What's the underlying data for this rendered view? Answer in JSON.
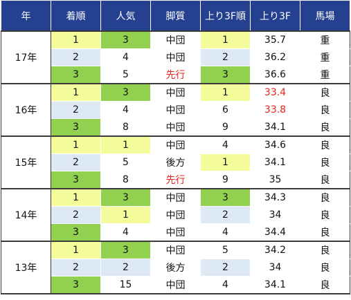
{
  "header": {
    "year": "年",
    "finish": "着順",
    "popularity": "人気",
    "style": "脚質",
    "last3f_rank": "上り3F順",
    "last3f": "上り3F",
    "track": "馬場"
  },
  "colors": {
    "header_bg": "#25408f",
    "rank1": "#f4fc9c",
    "rank2": "#dde9f5",
    "rank3": "#92d150",
    "highlight_text": "#e8231c"
  },
  "years": [
    {
      "year": "17年",
      "rows": [
        {
          "finish": "1",
          "pop": "3",
          "pop_rank": 3,
          "style": "中団",
          "style_red": false,
          "rank3f": "1",
          "rank3f_rank": 1,
          "time": "35.7",
          "time_red": false,
          "track": "重"
        },
        {
          "finish": "2",
          "pop": "4",
          "pop_rank": 0,
          "style": "中団",
          "style_red": false,
          "rank3f": "2",
          "rank3f_rank": 2,
          "time": "36.2",
          "time_red": false,
          "track": "重"
        },
        {
          "finish": "3",
          "pop": "5",
          "pop_rank": 0,
          "style": "先行",
          "style_red": true,
          "rank3f": "3",
          "rank3f_rank": 3,
          "time": "36.6",
          "time_red": false,
          "track": "重"
        }
      ]
    },
    {
      "year": "16年",
      "rows": [
        {
          "finish": "1",
          "pop": "3",
          "pop_rank": 3,
          "style": "中団",
          "style_red": false,
          "rank3f": "1",
          "rank3f_rank": 1,
          "time": "33.4",
          "time_red": true,
          "track": "良"
        },
        {
          "finish": "2",
          "pop": "4",
          "pop_rank": 0,
          "style": "中団",
          "style_red": false,
          "rank3f": "6",
          "rank3f_rank": 0,
          "time": "33.8",
          "time_red": true,
          "track": "良"
        },
        {
          "finish": "3",
          "pop": "8",
          "pop_rank": 0,
          "style": "中団",
          "style_red": false,
          "rank3f": "9",
          "rank3f_rank": 0,
          "time": "34.1",
          "time_red": false,
          "track": "良"
        }
      ]
    },
    {
      "year": "15年",
      "rows": [
        {
          "finish": "1",
          "pop": "1",
          "pop_rank": 1,
          "style": "中団",
          "style_red": false,
          "rank3f": "4",
          "rank3f_rank": 0,
          "time": "34.6",
          "time_red": false,
          "track": "良"
        },
        {
          "finish": "2",
          "pop": "5",
          "pop_rank": 0,
          "style": "後方",
          "style_red": false,
          "rank3f": "1",
          "rank3f_rank": 1,
          "time": "34.1",
          "time_red": false,
          "track": "良"
        },
        {
          "finish": "3",
          "pop": "8",
          "pop_rank": 0,
          "style": "先行",
          "style_red": true,
          "rank3f": "9",
          "rank3f_rank": 0,
          "time": "35",
          "time_red": false,
          "track": "良"
        }
      ]
    },
    {
      "year": "14年",
      "rows": [
        {
          "finish": "1",
          "pop": "3",
          "pop_rank": 3,
          "style": "中団",
          "style_red": false,
          "rank3f": "3",
          "rank3f_rank": 3,
          "time": "34.3",
          "time_red": false,
          "track": "良"
        },
        {
          "finish": "2",
          "pop": "1",
          "pop_rank": 1,
          "style": "中団",
          "style_red": false,
          "rank3f": "2",
          "rank3f_rank": 2,
          "time": "34",
          "time_red": false,
          "track": "良"
        },
        {
          "finish": "3",
          "pop": "4",
          "pop_rank": 0,
          "style": "中団",
          "style_red": false,
          "rank3f": "4",
          "rank3f_rank": 0,
          "time": "34.4",
          "time_red": false,
          "track": "良"
        }
      ]
    },
    {
      "year": "13年",
      "rows": [
        {
          "finish": "1",
          "pop": "3",
          "pop_rank": 3,
          "style": "中団",
          "style_red": false,
          "rank3f": "5",
          "rank3f_rank": 0,
          "time": "34.2",
          "time_red": false,
          "track": "良"
        },
        {
          "finish": "2",
          "pop": "2",
          "pop_rank": 2,
          "style": "後方",
          "style_red": false,
          "rank3f": "2",
          "rank3f_rank": 2,
          "time": "34",
          "time_red": false,
          "track": "良"
        },
        {
          "finish": "3",
          "pop": "15",
          "pop_rank": 0,
          "style": "中団",
          "style_red": false,
          "rank3f": "4",
          "rank3f_rank": 0,
          "time": "34.1",
          "time_red": false,
          "track": "良"
        }
      ]
    }
  ]
}
